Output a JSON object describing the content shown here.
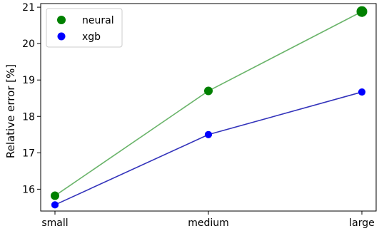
{
  "chart_data": {
    "type": "line",
    "categories": [
      "small",
      "medium",
      "large"
    ],
    "series": [
      {
        "name": "neural",
        "values": [
          15.82,
          18.7,
          20.88
        ],
        "marker_sizes": [
          1,
          1,
          1.25
        ],
        "marker_color": "#008000",
        "line_color": "#6ab46a"
      },
      {
        "name": "xgb",
        "values": [
          15.57,
          17.5,
          18.67
        ],
        "marker_sizes": [
          1,
          1,
          1
        ],
        "marker_color": "#0000ff",
        "line_color": "#3333bb"
      }
    ],
    "xlabel": "",
    "ylabel": "Relative error [%]",
    "ylim": [
      15.4,
      21.1
    ],
    "yticks": [
      16,
      17,
      18,
      19,
      20,
      21
    ],
    "grid": false,
    "legend_position": "top-left"
  }
}
